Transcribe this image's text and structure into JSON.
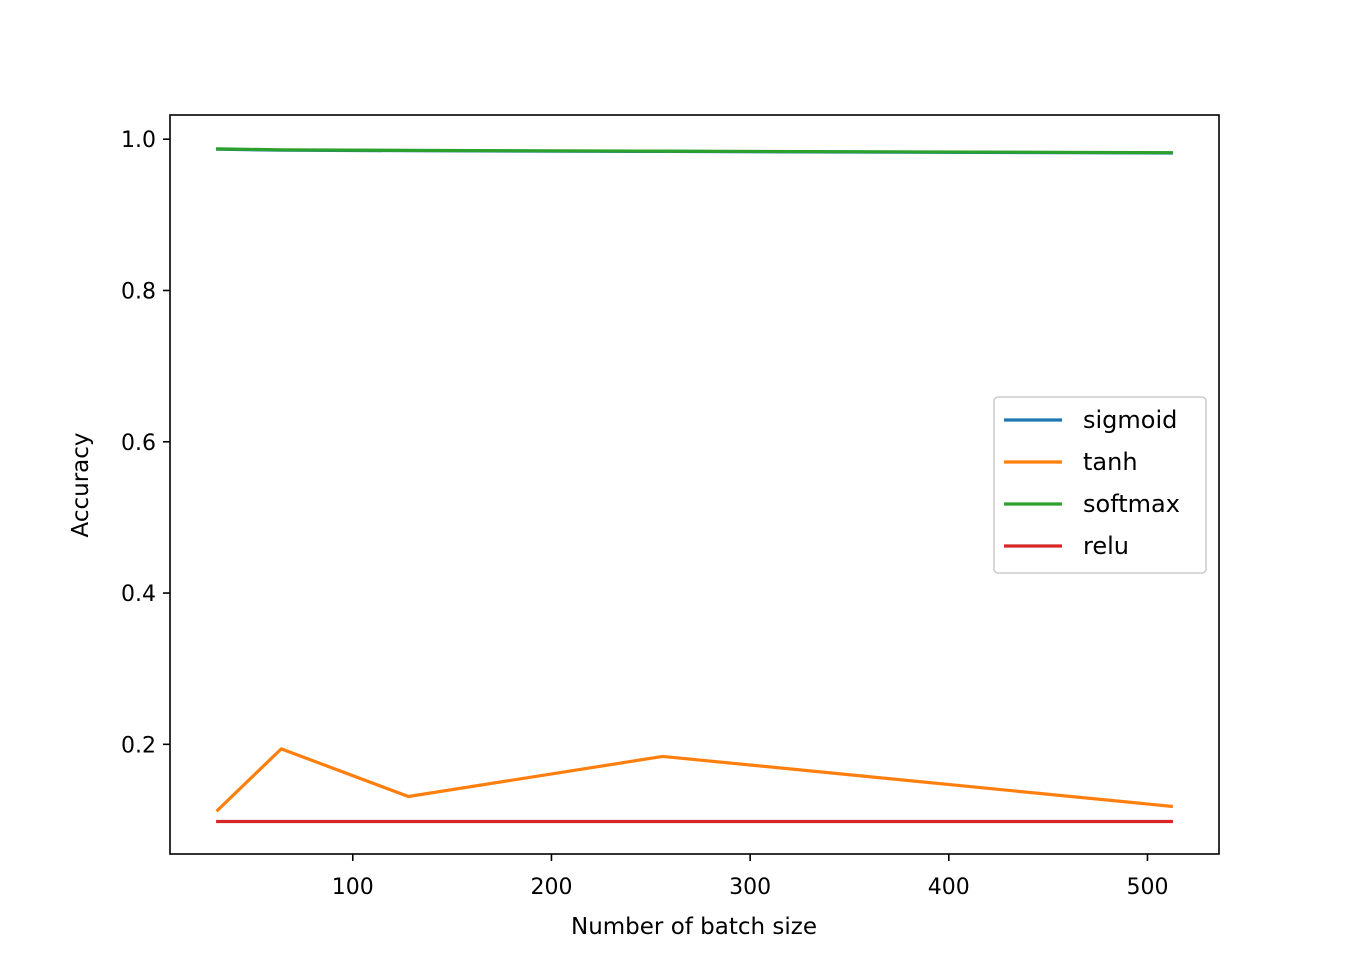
{
  "chart_data": {
    "type": "line",
    "title": "",
    "xlabel": "Number of batch size",
    "ylabel": "Accuracy",
    "xlim": [
      8,
      536
    ],
    "ylim": [
      0.055,
      1.032
    ],
    "x_ticks": [
      100,
      200,
      300,
      400,
      500
    ],
    "y_ticks": [
      0.2,
      0.4,
      0.6,
      0.8,
      1.0
    ],
    "x_tick_labels": [
      "100",
      "200",
      "300",
      "400",
      "500"
    ],
    "y_tick_labels": [
      "0.2",
      "0.4",
      "0.6",
      "0.8",
      "1.0"
    ],
    "grid": false,
    "legend_position": "center-right",
    "x": [
      32,
      64,
      128,
      256,
      512
    ],
    "series": [
      {
        "name": "sigmoid",
        "color": "#1f77b4",
        "values": [
          0.9868,
          0.9855,
          0.9848,
          0.9838,
          0.9818
        ]
      },
      {
        "name": "tanh",
        "color": "#ff7f0e",
        "values": [
          0.113,
          0.194,
          0.131,
          0.184,
          0.118
        ]
      },
      {
        "name": "softmax",
        "color": "#2ca02c",
        "values": [
          0.9872,
          0.986,
          0.9852,
          0.9842,
          0.9822
        ]
      },
      {
        "name": "relu",
        "color": "#d62728",
        "values": [
          0.098,
          0.098,
          0.098,
          0.098,
          0.098
        ]
      }
    ]
  }
}
